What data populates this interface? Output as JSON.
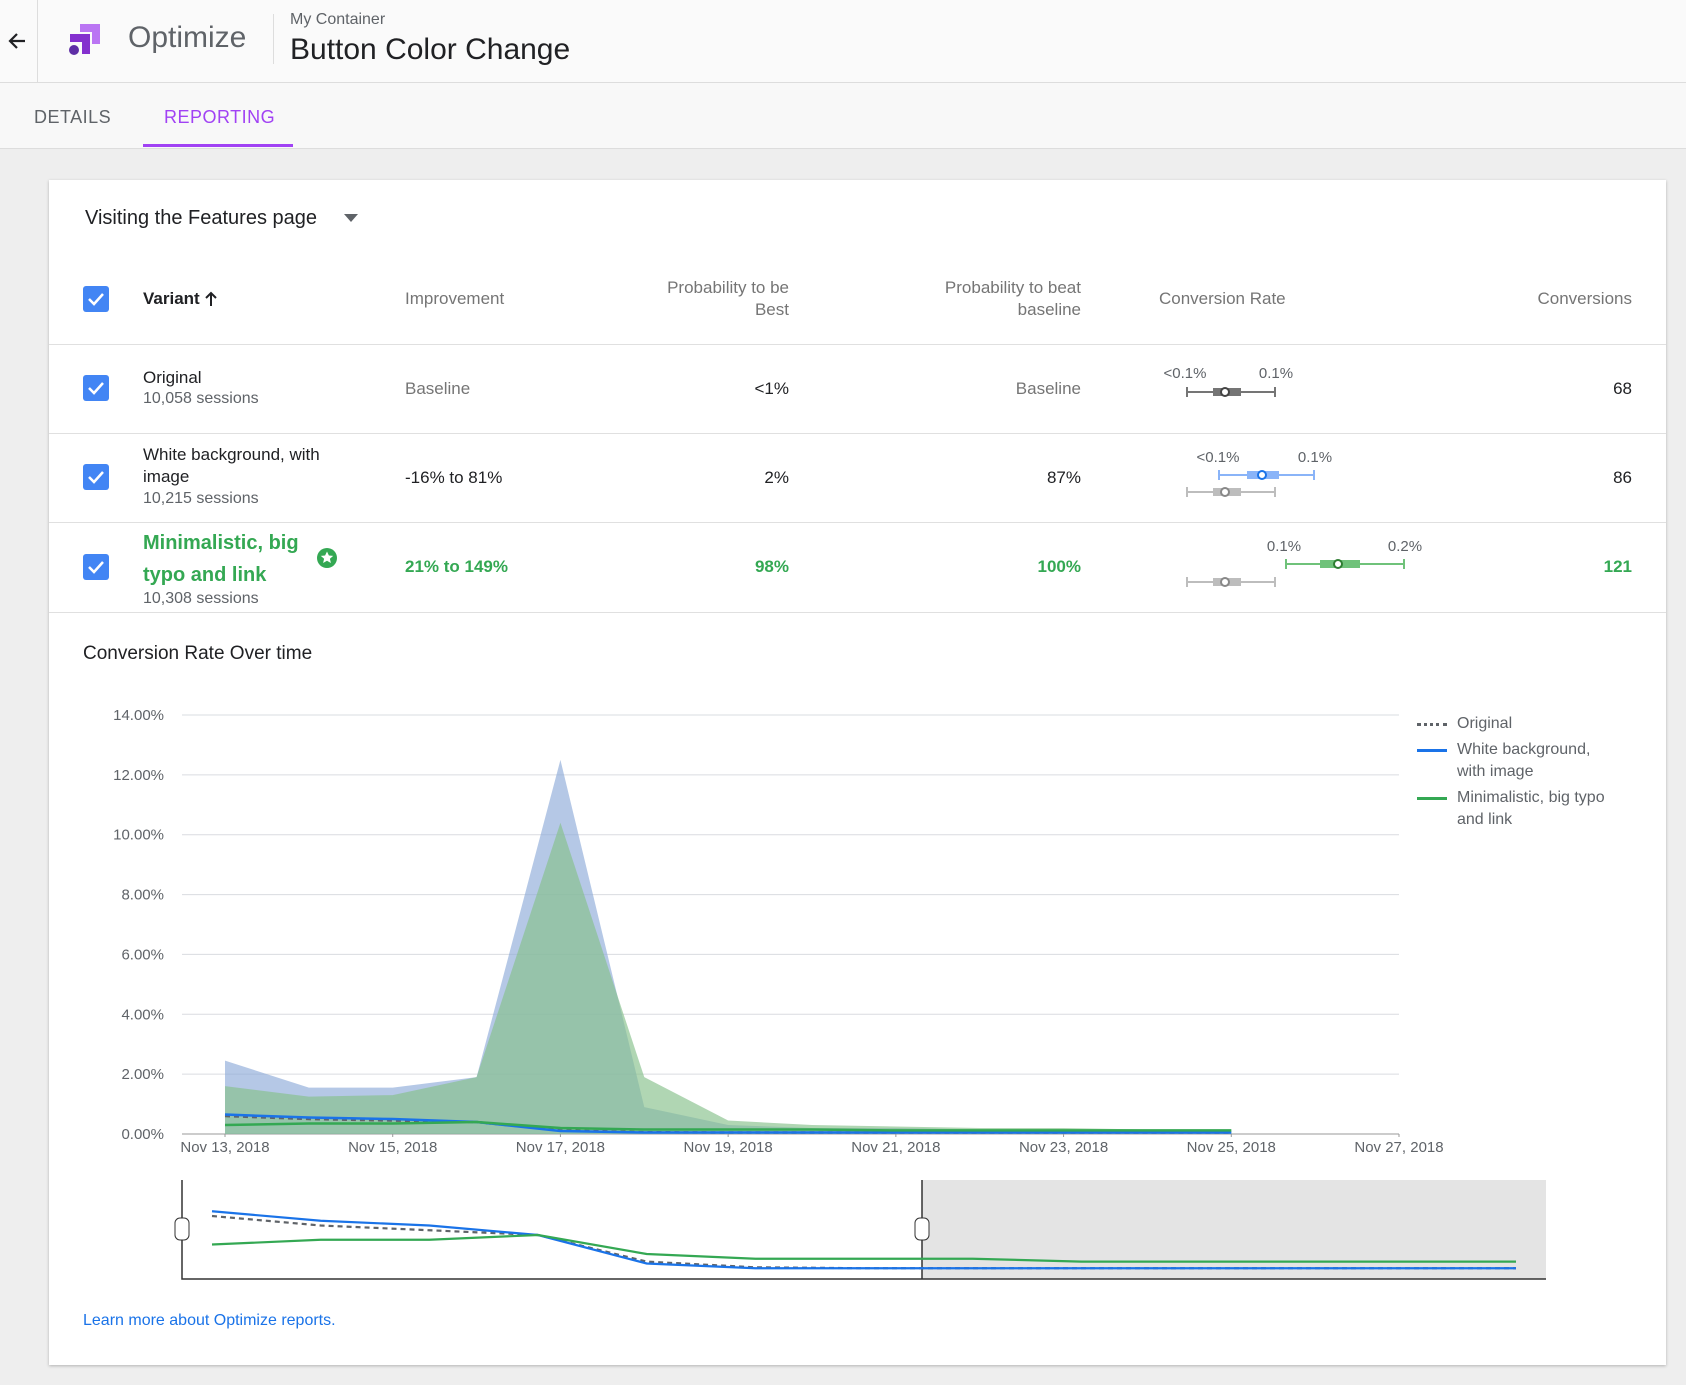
{
  "header": {
    "product": "Optimize",
    "container": "My Container",
    "experiment": "Button Color Change"
  },
  "tabs": [
    "DETAILS",
    "REPORTING"
  ],
  "objective": "Visiting the Features page",
  "table": {
    "columns": [
      "Variant",
      "Improvement",
      "Probability to be Best",
      "Probability to beat baseline",
      "Conversion Rate",
      "Conversions"
    ],
    "rows": [
      {
        "name": "Original",
        "sessions": "10,058 sessions",
        "improvement": "Baseline",
        "best": "<1%",
        "beat": "Baseline",
        "rate_labels": [
          "<0.1%",
          "0.1%"
        ],
        "conversions": 68
      },
      {
        "name": "White background, with image",
        "sessions": "10,215 sessions",
        "improvement": "-16% to 81%",
        "best": "2%",
        "beat": "87%",
        "rate_labels": [
          "<0.1%",
          "0.1%"
        ],
        "conversions": 86
      },
      {
        "name": "Minimalistic, big typo and link",
        "sessions": "10,308 sessions",
        "improvement": "21% to 149%",
        "best": "98%",
        "beat": "100%",
        "rate_labels": [
          "0.1%",
          "0.2%"
        ],
        "conversions": 121
      }
    ]
  },
  "chart_data": {
    "type": "line",
    "title": "Conversion Rate Over time",
    "x": [
      "2018-11-13",
      "2018-11-14",
      "2018-11-15",
      "2018-11-16",
      "2018-11-17",
      "2018-11-18",
      "2018-11-19",
      "2018-11-20",
      "2018-11-21",
      "2018-11-22",
      "2018-11-23",
      "2018-11-24",
      "2018-11-25"
    ],
    "series": [
      {
        "name": "Original",
        "color": "#5f6368",
        "dashed": true,
        "values": [
          0.6,
          0.5,
          0.45,
          0.4,
          0.12,
          0.06,
          0.05,
          0.05,
          0.05,
          0.05,
          0.05,
          0.05,
          0.05
        ]
      },
      {
        "name": "White background, with image",
        "color": "#1a73e8",
        "area_color": "#8eaad8",
        "values": [
          0.65,
          0.55,
          0.5,
          0.4,
          0.1,
          0.05,
          0.05,
          0.05,
          0.05,
          0.05,
          0.05,
          0.05,
          0.05
        ],
        "upper": [
          2.45,
          1.55,
          1.55,
          1.9,
          12.5,
          0.9,
          0.3,
          0.2,
          0.2,
          0.15,
          0.15,
          0.15,
          0.15
        ]
      },
      {
        "name": "Minimalistic, big typo and link",
        "color": "#34a853",
        "area_color": "#86c08a",
        "values": [
          0.3,
          0.35,
          0.35,
          0.4,
          0.2,
          0.15,
          0.15,
          0.15,
          0.12,
          0.12,
          0.12,
          0.12,
          0.12
        ],
        "upper": [
          1.6,
          1.25,
          1.3,
          1.9,
          10.4,
          1.9,
          0.45,
          0.3,
          0.25,
          0.2,
          0.2,
          0.15,
          0.15
        ]
      }
    ],
    "xlim": [
      "2018-11-13",
      "2018-11-27"
    ],
    "xticks": [
      {
        "value": "2018-11-13",
        "label": "Nov 13, 2018"
      },
      {
        "value": "2018-11-15",
        "label": "Nov 15, 2018"
      },
      {
        "value": "2018-11-17",
        "label": "Nov 17, 2018"
      },
      {
        "value": "2018-11-19",
        "label": "Nov 19, 2018"
      },
      {
        "value": "2018-11-21",
        "label": "Nov 21, 2018"
      },
      {
        "value": "2018-11-23",
        "label": "Nov 23, 2018"
      },
      {
        "value": "2018-11-25",
        "label": "Nov 25, 2018"
      },
      {
        "value": "2018-11-27",
        "label": "Nov 27, 2018"
      }
    ],
    "ylim": [
      0,
      14
    ],
    "yticks": [
      {
        "value": 0,
        "label": "0.00%"
      },
      {
        "value": 2,
        "label": "2.00%"
      },
      {
        "value": 4,
        "label": "4.00%"
      },
      {
        "value": 6,
        "label": "6.00%"
      },
      {
        "value": 8,
        "label": "8.00%"
      },
      {
        "value": 10,
        "label": "10.00%"
      },
      {
        "value": 12,
        "label": "12.00%"
      },
      {
        "value": 14,
        "label": "14.00%"
      }
    ],
    "grid": true,
    "legend": "right"
  },
  "footer_link": "Learn more about Optimize reports."
}
